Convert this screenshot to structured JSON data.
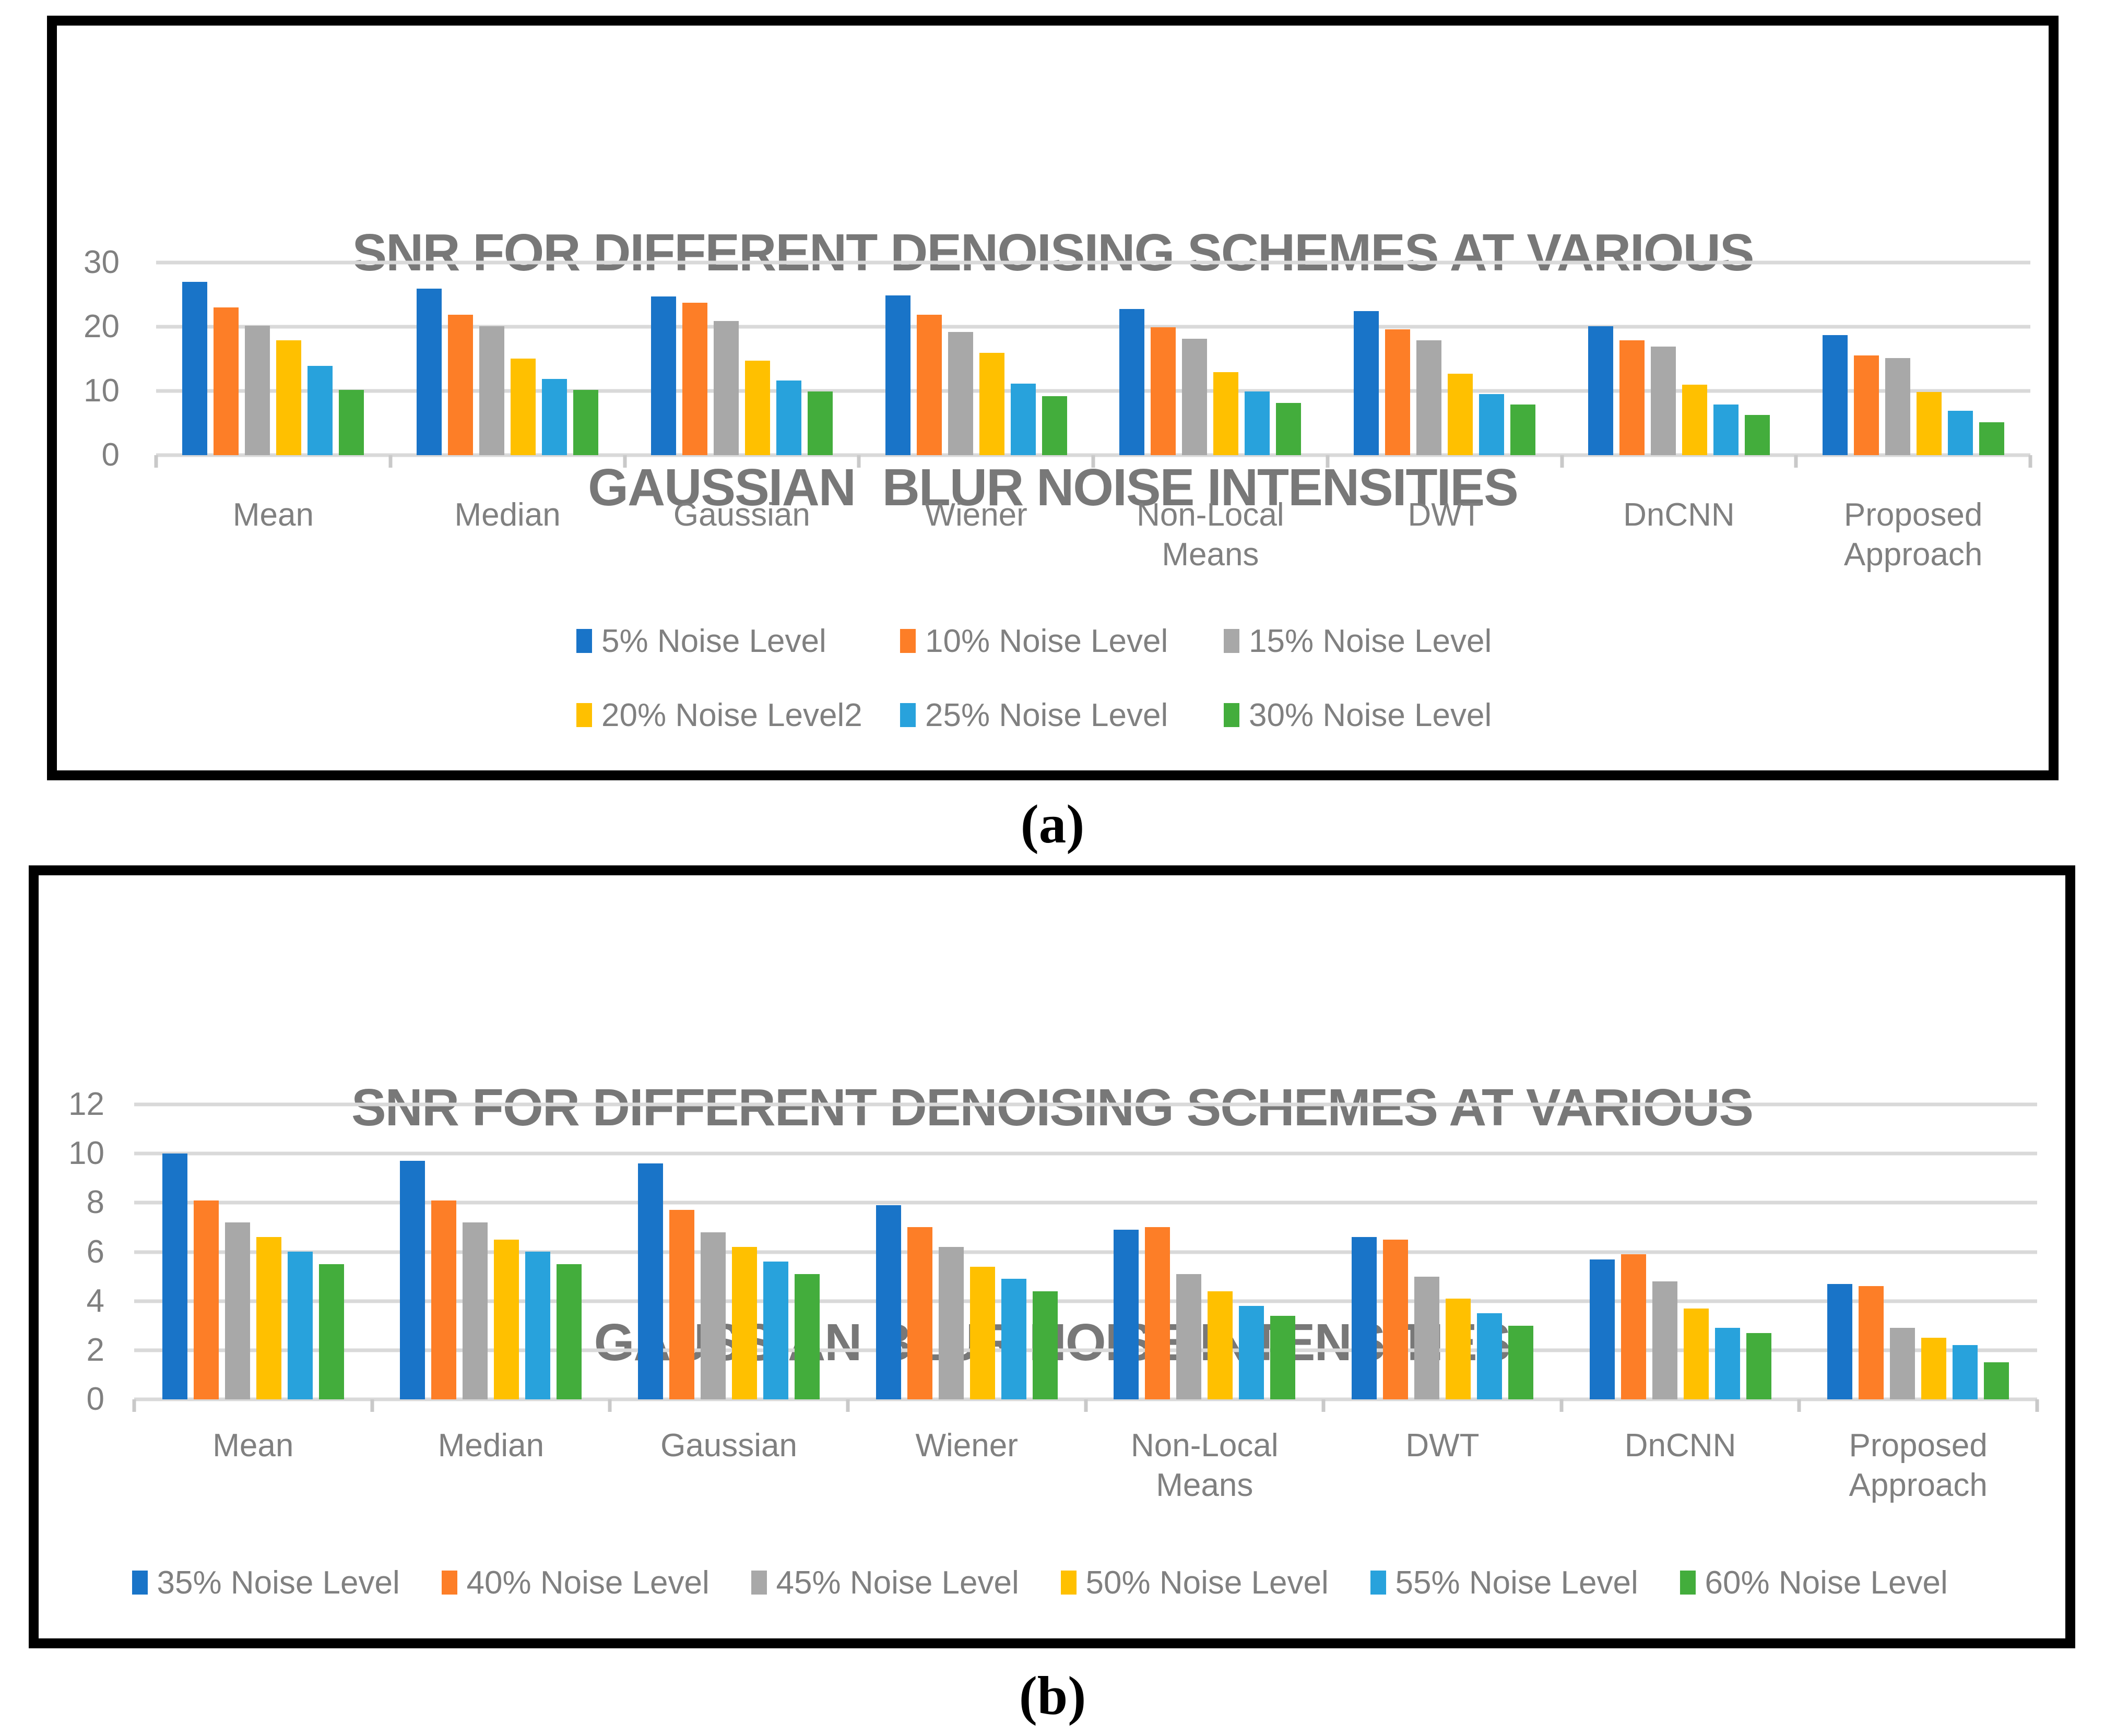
{
  "captions": {
    "a": "(a)",
    "b": "(b)"
  },
  "style": {
    "background": "#FFFFFF",
    "border_color": "#000000",
    "title_color": "#787878",
    "label_color": "#808080",
    "grid_color": "#D9D9D9",
    "axis_tick_color": "#C9C9C9"
  },
  "chart_data": [
    {
      "type": "bar",
      "title_line1": "SNR FOR DIFFERENT DENOISING SCHEMES AT VARIOUS",
      "title_line2": "GAUSSIAN  BLUR NOISE INTENSITIES",
      "categories": [
        "Mean",
        "Median",
        "Gaussian",
        "Wiener",
        "Non-Local Means",
        "DWT",
        "DnCNN",
        "Proposed Approach"
      ],
      "ylim": [
        0,
        30
      ],
      "yticks": [
        30,
        20,
        10,
        0
      ],
      "grid": true,
      "legend_position": "bottom",
      "series": [
        {
          "name": "5% Noise Level",
          "color": "#1974C8",
          "values": [
            27.0,
            25.9,
            24.7,
            24.9,
            22.8,
            22.4,
            20.1,
            18.7
          ]
        },
        {
          "name": "10% Noise Level",
          "color": "#FD7E27",
          "values": [
            23.0,
            21.9,
            23.7,
            21.9,
            19.9,
            19.6,
            17.9,
            15.5
          ]
        },
        {
          "name": "15% Noise Level",
          "color": "#A8A8A8",
          "values": [
            20.2,
            20.1,
            20.9,
            19.2,
            18.1,
            17.9,
            16.9,
            15.1
          ]
        },
        {
          "name": "20% Noise Level2",
          "color": "#FFC000",
          "values": [
            17.9,
            15.0,
            14.7,
            15.9,
            12.9,
            12.7,
            11.0,
            9.8
          ]
        },
        {
          "name": "25% Noise Level",
          "color": "#28A2DC",
          "values": [
            13.9,
            11.9,
            11.6,
            11.1,
            9.9,
            9.5,
            7.9,
            6.9
          ]
        },
        {
          "name": "30% Noise Level",
          "color": "#43AD3C",
          "values": [
            10.2,
            10.2,
            9.9,
            9.2,
            8.1,
            7.9,
            6.3,
            5.1
          ]
        }
      ]
    },
    {
      "type": "bar",
      "title_line1": "SNR FOR DIFFERENT DENOISING SCHEMES AT VARIOUS",
      "title_line2": "GAUSSIAN BLUR NOISE INTENSITIES",
      "categories": [
        "Mean",
        "Median",
        "Gaussian",
        "Wiener",
        "Non-Local Means",
        "DWT",
        "DnCNN",
        "Proposed Approach"
      ],
      "ylim": [
        0,
        12
      ],
      "yticks": [
        12,
        10,
        8,
        6,
        4,
        2,
        0
      ],
      "grid": true,
      "legend_position": "bottom",
      "series": [
        {
          "name": "35% Noise Level",
          "color": "#1974C8",
          "values": [
            10.0,
            9.7,
            9.6,
            7.9,
            6.9,
            6.6,
            5.7,
            4.7
          ]
        },
        {
          "name": "40% Noise Level",
          "color": "#FD7E27",
          "values": [
            8.1,
            8.1,
            7.7,
            7.0,
            7.0,
            6.5,
            5.9,
            4.6
          ]
        },
        {
          "name": "45% Noise Level",
          "color": "#A8A8A8",
          "values": [
            7.2,
            7.2,
            6.8,
            6.2,
            5.1,
            5.0,
            4.8,
            2.9
          ]
        },
        {
          "name": "50% Noise Level",
          "color": "#FFC000",
          "values": [
            6.6,
            6.5,
            6.2,
            5.4,
            4.4,
            4.1,
            3.7,
            2.5
          ]
        },
        {
          "name": "55% Noise Level",
          "color": "#28A2DC",
          "values": [
            6.0,
            6.0,
            5.6,
            4.9,
            3.8,
            3.5,
            2.9,
            2.2
          ]
        },
        {
          "name": "60% Noise Level",
          "color": "#43AD3C",
          "values": [
            5.5,
            5.5,
            5.1,
            4.4,
            3.4,
            3.0,
            2.7,
            1.5
          ]
        }
      ]
    }
  ]
}
